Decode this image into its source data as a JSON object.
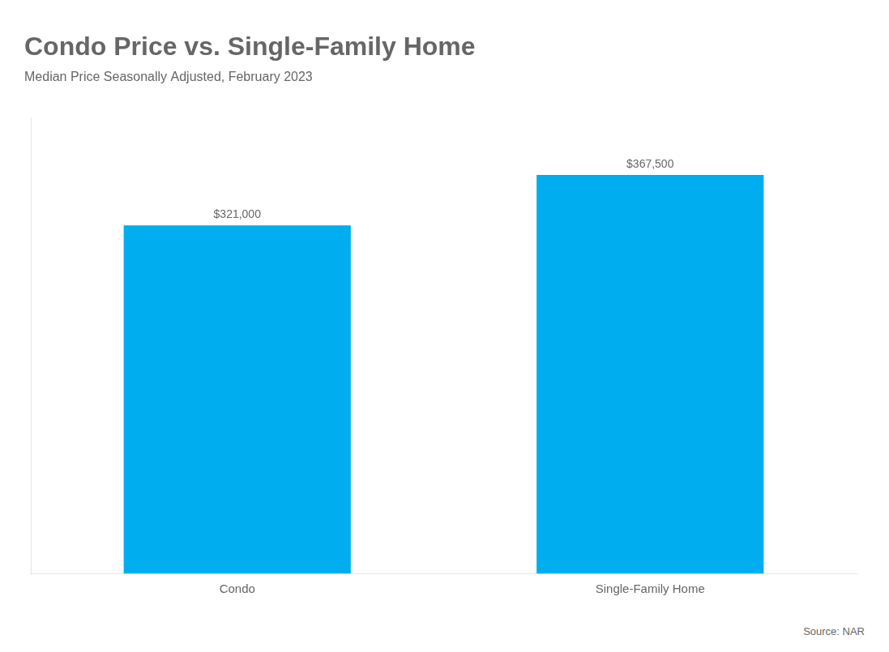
{
  "chart_data": {
    "type": "bar",
    "title": "Condo Price vs. Single-Family Home",
    "subtitle": "Median Price Seasonally Adjusted, February 2023",
    "categories": [
      "Condo",
      "Single-Family Home"
    ],
    "values": [
      321000,
      367500
    ],
    "value_labels": [
      "$321,000",
      "$367,500"
    ],
    "data_labels": true,
    "color": "#00AEEF",
    "ylim": [
      0,
      420000
    ],
    "grid": false,
    "legend": false,
    "tick_labels": "x",
    "annotations": [
      "Source: NAR"
    ]
  }
}
